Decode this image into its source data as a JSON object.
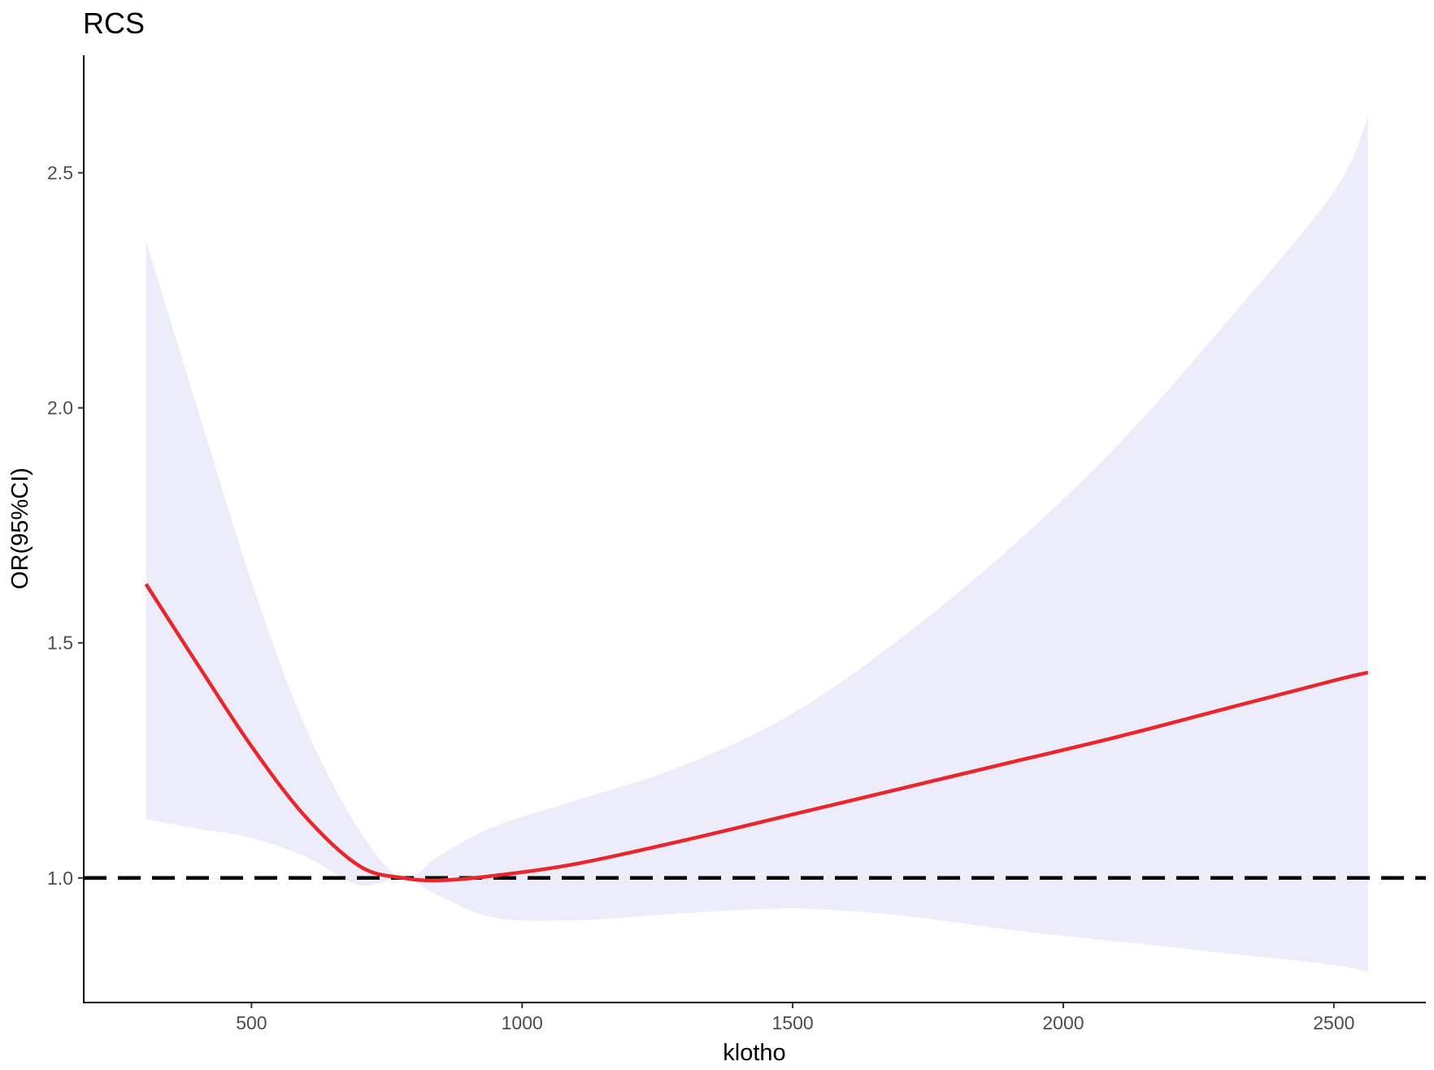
{
  "chart_data": {
    "type": "line",
    "title": "RCS",
    "xlabel": "klotho",
    "ylabel": "OR(95%CI)",
    "xlim": [
      190,
      2670
    ],
    "ylim": [
      0.735,
      2.75
    ],
    "x_ticks": [
      500,
      1000,
      1500,
      2000,
      2500
    ],
    "x_tick_labels": [
      "500",
      "1000",
      "1500",
      "2000",
      "2500"
    ],
    "y_ticks": [
      1.0,
      1.5,
      2.0,
      2.5
    ],
    "y_tick_labels": [
      "1.0",
      "1.5",
      "2.0",
      "2.5"
    ],
    "reference_line": {
      "y": 1.0,
      "style": "dashed",
      "color": "#000000"
    },
    "grid": false,
    "series": [
      {
        "color": "#e8262c",
        "ci_color": "#ececfb",
        "x": [
          305,
          400,
          500,
          600,
          700,
          780,
          850,
          950,
          1100,
          1300,
          1500,
          1700,
          1900,
          2100,
          2300,
          2500,
          2563
        ],
        "y": [
          1.625,
          1.455,
          1.28,
          1.13,
          1.025,
          1.0,
          0.995,
          1.005,
          1.03,
          1.08,
          1.135,
          1.19,
          1.245,
          1.3,
          1.36,
          1.42,
          1.437
        ],
        "lower": [
          1.125,
          1.105,
          1.085,
          1.045,
          0.985,
          1.0,
          0.96,
          0.915,
          0.91,
          0.925,
          0.935,
          0.92,
          0.89,
          0.865,
          0.84,
          0.815,
          0.8
        ],
        "upper": [
          2.355,
          2.0,
          1.63,
          1.32,
          1.1,
          1.0,
          1.05,
          1.11,
          1.165,
          1.24,
          1.35,
          1.51,
          1.7,
          1.92,
          2.18,
          2.46,
          2.62
        ]
      }
    ]
  }
}
